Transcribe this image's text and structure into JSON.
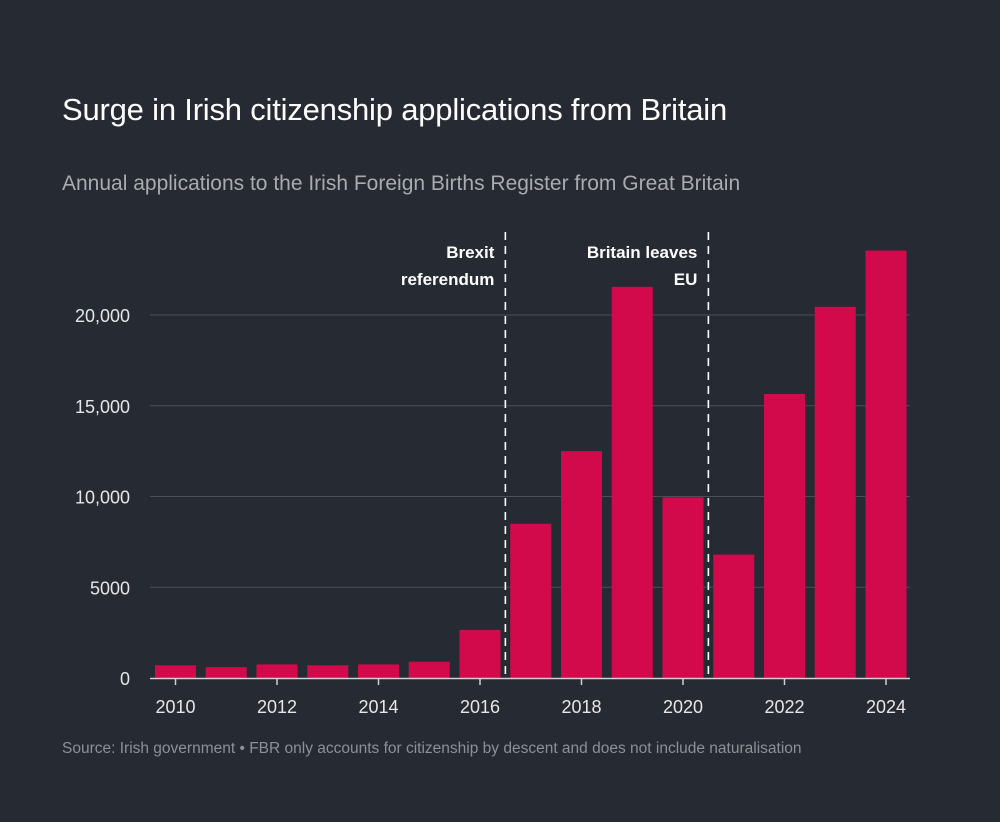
{
  "chart_data": {
    "type": "bar",
    "title": "Surge in Irish citizenship applications from Britain",
    "subtitle": "Annual applications to the Irish Foreign Births Register from Great Britain",
    "source": "Source: Irish government • FBR only accounts for citizenship by descent and does not include naturalisation",
    "categories": [
      2010,
      2011,
      2012,
      2013,
      2014,
      2015,
      2016,
      2017,
      2018,
      2019,
      2020,
      2021,
      2022,
      2023,
      2024
    ],
    "values": [
      700,
      600,
      750,
      700,
      750,
      900,
      2650,
      8500,
      12500,
      21550,
      9950,
      6800,
      15650,
      20450,
      23550
    ],
    "x_tick_labels": [
      "2010",
      "2012",
      "2014",
      "2016",
      "2018",
      "2020",
      "2022",
      "2024"
    ],
    "y_ticks": [
      0,
      5000,
      10000,
      15000,
      20000
    ],
    "y_tick_labels": [
      "0",
      "5000",
      "10,000",
      "15,000",
      "20,000"
    ],
    "ylim": [
      0,
      24500
    ],
    "grid": true,
    "bar_color": "#d20a4c",
    "annotations": [
      {
        "x": 2016.5,
        "lines": [
          "Brexit",
          "referendum"
        ]
      },
      {
        "x": 2020.5,
        "lines": [
          "Britain leaves",
          "EU"
        ]
      }
    ]
  }
}
